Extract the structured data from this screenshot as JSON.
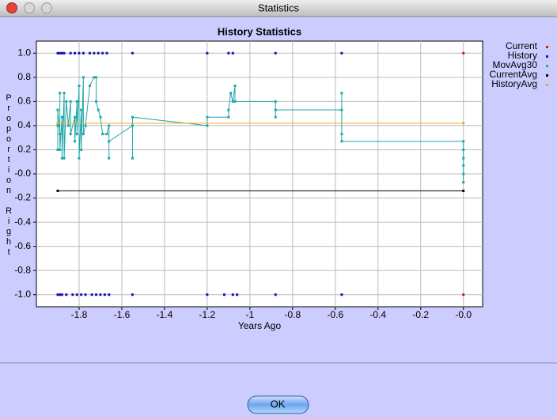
{
  "window": {
    "title": "Statistics",
    "button": "OK"
  },
  "chart_data": {
    "type": "line",
    "title": "History Statistics",
    "xlabel": "Years Ago",
    "ylabel": "Proportion Right",
    "xlim": [
      -2.0,
      0.09
    ],
    "ylim": [
      -1.1,
      1.1
    ],
    "xticks": [
      -1.8,
      -1.6,
      -1.4,
      -1.2,
      -1.0,
      -0.8,
      -0.6,
      -0.4,
      -0.2,
      {
        "value": 0,
        "label": "-0.0"
      }
    ],
    "yticks": [
      {
        "value": 1,
        "label": "1.0"
      },
      0.8,
      0.6,
      0.4,
      0.2,
      {
        "value": 0,
        "label": "-0.0"
      },
      -0.2,
      -0.4,
      -0.6,
      -0.8,
      {
        "value": -1,
        "label": "-1.0"
      }
    ],
    "grid": true,
    "legend": "right",
    "series": [
      {
        "name": "Current",
        "color": "#e01010",
        "style": "points",
        "x": [
          0,
          0
        ],
        "values": [
          1,
          -1
        ]
      },
      {
        "name": "History",
        "color": "#1010c0",
        "style": "points",
        "x": [
          -1.9,
          -1.89,
          -1.88,
          -1.87,
          -1.84,
          -1.82,
          -1.8,
          -1.78,
          -1.75,
          -1.73,
          -1.71,
          -1.69,
          -1.67,
          -1.55,
          -1.2,
          -1.1,
          -1.08,
          -0.88,
          -0.57,
          -1.9,
          -1.89,
          -1.88,
          -1.86,
          -1.83,
          -1.81,
          -1.79,
          -1.77,
          -1.74,
          -1.72,
          -1.7,
          -1.68,
          -1.66,
          -1.55,
          -1.2,
          -1.12,
          -1.08,
          -1.06,
          -0.88,
          -0.57
        ],
        "values": [
          1,
          1,
          1,
          1,
          1,
          1,
          1,
          1,
          1,
          1,
          1,
          1,
          1,
          1,
          1,
          1,
          1,
          1,
          1,
          -1,
          -1,
          -1,
          -1,
          -1,
          -1,
          -1,
          -1,
          -1,
          -1,
          -1,
          -1,
          -1,
          -1,
          -1,
          -1,
          -1,
          -1,
          -1,
          -1
        ]
      },
      {
        "name": "MovAvg30",
        "color": "#20a8a8",
        "style": "line",
        "x": [
          -1.9,
          -1.9,
          -1.9,
          -1.89,
          -1.89,
          -1.89,
          -1.88,
          -1.88,
          -1.87,
          -1.87,
          -1.86,
          -1.85,
          -1.84,
          -1.84,
          -1.82,
          -1.82,
          -1.81,
          -1.81,
          -1.8,
          -1.8,
          -1.79,
          -1.79,
          -1.78,
          -1.78,
          -1.77,
          -1.75,
          -1.73,
          -1.72,
          -1.72,
          -1.71,
          -1.7,
          -1.69,
          -1.67,
          -1.66,
          -1.66,
          -1.66,
          -1.55,
          -1.55,
          -1.55,
          -1.2,
          -1.2,
          -1.1,
          -1.1,
          -1.09,
          -1.08,
          -1.07,
          -1.07,
          -0.88,
          -0.88,
          -0.88,
          -0.57,
          -0.57,
          -0.57,
          -0.57,
          0,
          0,
          0,
          0,
          0,
          0
        ],
        "values": [
          0.4,
          0.2,
          0.53,
          0.33,
          0.67,
          0.2,
          0.47,
          0.13,
          0.67,
          0.13,
          0.6,
          0.4,
          0.6,
          0.33,
          0.47,
          0.27,
          0.6,
          0.33,
          0.73,
          0.13,
          0.53,
          0.2,
          0.8,
          0.33,
          0.4,
          0.73,
          0.8,
          0.8,
          0.6,
          0.53,
          0.47,
          0.33,
          0.33,
          0.4,
          0.13,
          0.27,
          0.4,
          0.13,
          0.47,
          0.4,
          0.47,
          0.47,
          0.53,
          0.67,
          0.6,
          0.73,
          0.6,
          0.6,
          0.47,
          0.53,
          0.53,
          0.67,
          0.33,
          0.27,
          0.27,
          0.2,
          0.13,
          0.07,
          0,
          -0.07
        ]
      },
      {
        "name": "CurrentAvg",
        "color": "#000000",
        "style": "line",
        "x": [
          -1.9,
          0
        ],
        "values": [
          -0.14,
          -0.14
        ]
      },
      {
        "name": "HistoryAvg",
        "color": "#f0a820",
        "style": "line",
        "x": [
          -1.9,
          0
        ],
        "values": [
          0.42,
          0.42
        ]
      }
    ]
  }
}
